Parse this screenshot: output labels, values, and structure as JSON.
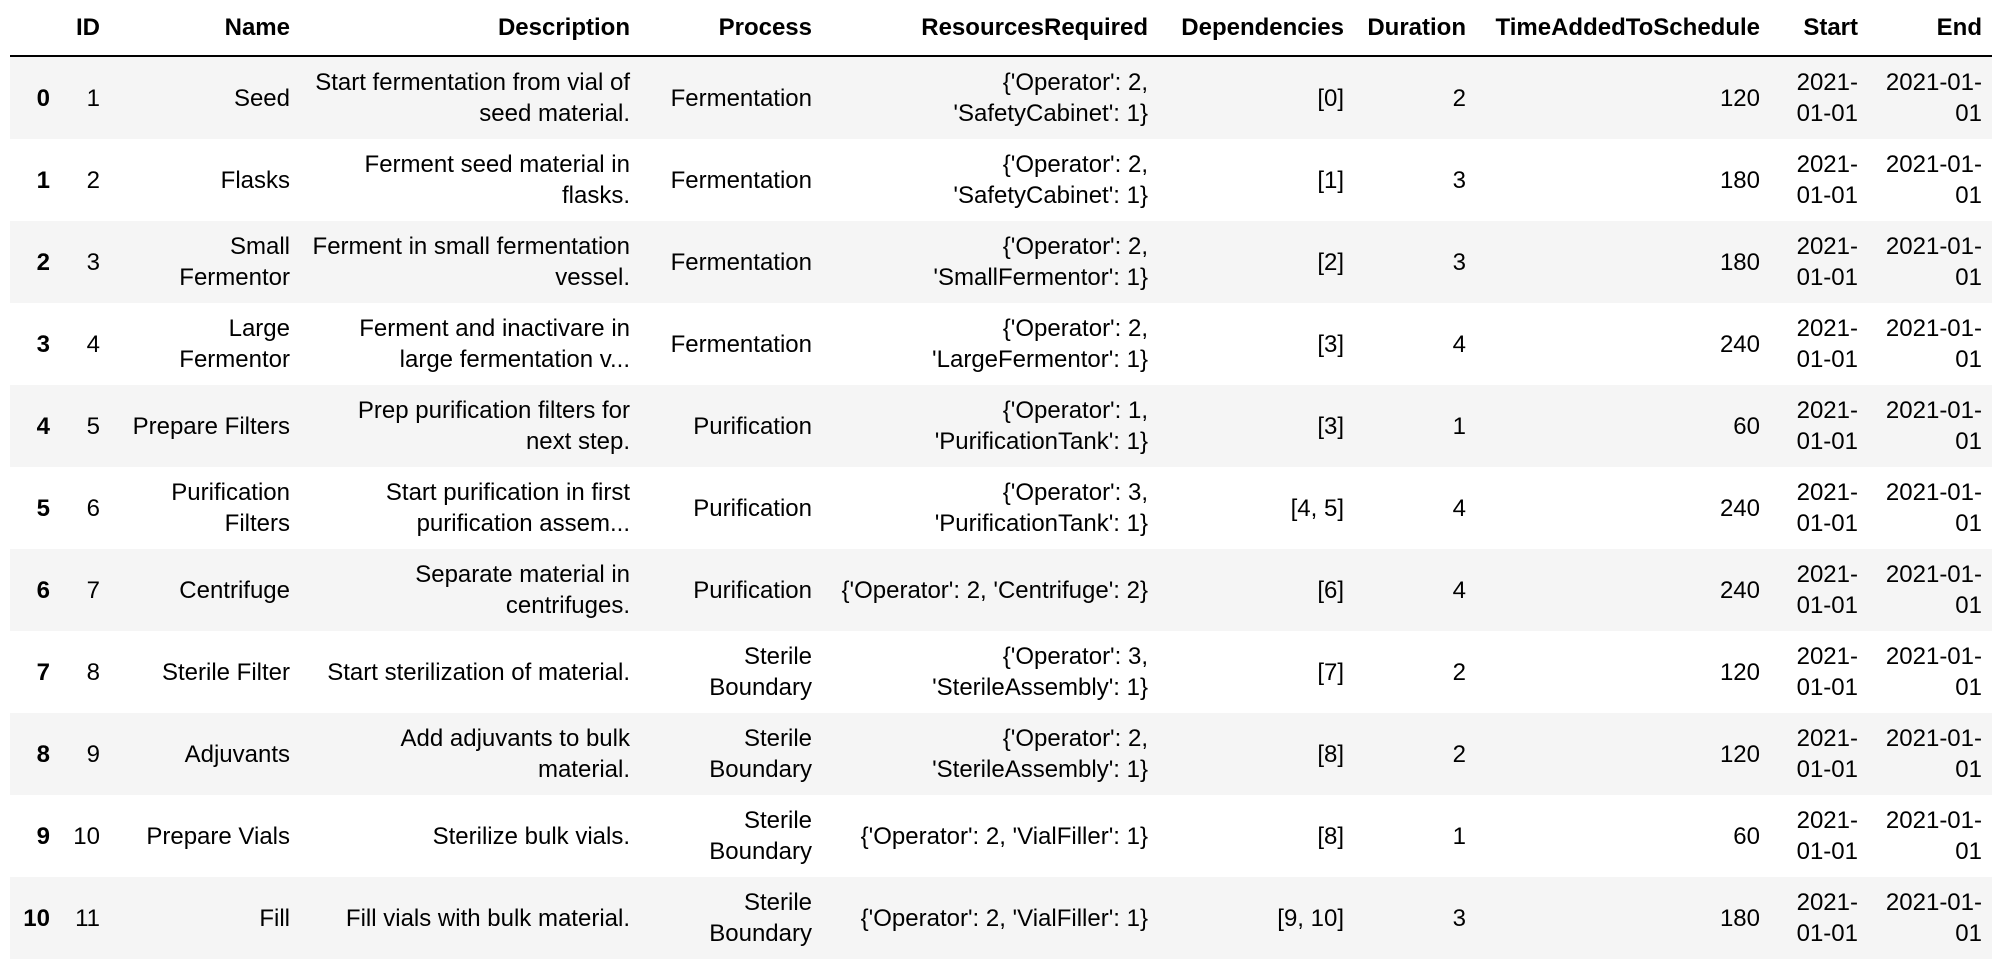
{
  "colors": {
    "row_stripe": "#f5f5f5",
    "text": "#000000",
    "header_border": "#000000"
  },
  "table": {
    "columns": [
      "",
      "ID",
      "Name",
      "Description",
      "Process",
      "ResourcesRequired",
      "Dependencies",
      "Duration",
      "TimeAddedToSchedule",
      "Start",
      "End"
    ],
    "column_keys": [
      "id",
      "name",
      "description",
      "process",
      "resources-required",
      "dependencies",
      "duration",
      "time-added-to-schedule",
      "start",
      "end"
    ],
    "rows": [
      {
        "index": "0",
        "cells": [
          "1",
          "Seed",
          "Start fermentation from vial of seed material.",
          "Fermentation",
          "{'Operator': 2, 'SafetyCabinet': 1}",
          "[0]",
          "2",
          "120",
          "2021-01-01",
          "2021-01-01"
        ]
      },
      {
        "index": "1",
        "cells": [
          "2",
          "Flasks",
          "Ferment seed material in flasks.",
          "Fermentation",
          "{'Operator': 2, 'SafetyCabinet': 1}",
          "[1]",
          "3",
          "180",
          "2021-01-01",
          "2021-01-01"
        ]
      },
      {
        "index": "2",
        "cells": [
          "3",
          "Small Fermentor",
          "Ferment in small fermentation vessel.",
          "Fermentation",
          "{'Operator': 2, 'SmallFermentor': 1}",
          "[2]",
          "3",
          "180",
          "2021-01-01",
          "2021-01-01"
        ]
      },
      {
        "index": "3",
        "cells": [
          "4",
          "Large Fermentor",
          "Ferment and inactivare in large fermentation v...",
          "Fermentation",
          "{'Operator': 2, 'LargeFermentor': 1}",
          "[3]",
          "4",
          "240",
          "2021-01-01",
          "2021-01-01"
        ]
      },
      {
        "index": "4",
        "cells": [
          "5",
          "Prepare Filters",
          "Prep purification filters for next step.",
          "Purification",
          "{'Operator': 1, 'PurificationTank': 1}",
          "[3]",
          "1",
          "60",
          "2021-01-01",
          "2021-01-01"
        ]
      },
      {
        "index": "5",
        "cells": [
          "6",
          "Purification Filters",
          "Start purification in first purification assem...",
          "Purification",
          "{'Operator': 3, 'PurificationTank': 1}",
          "[4, 5]",
          "4",
          "240",
          "2021-01-01",
          "2021-01-01"
        ]
      },
      {
        "index": "6",
        "cells": [
          "7",
          "Centrifuge",
          "Separate material in centrifuges.",
          "Purification",
          "{'Operator': 2, 'Centrifuge': 2}",
          "[6]",
          "4",
          "240",
          "2021-01-01",
          "2021-01-01"
        ]
      },
      {
        "index": "7",
        "cells": [
          "8",
          "Sterile Filter",
          "Start sterilization of material.",
          "Sterile Boundary",
          "{'Operator': 3, 'SterileAssembly': 1}",
          "[7]",
          "2",
          "120",
          "2021-01-01",
          "2021-01-01"
        ]
      },
      {
        "index": "8",
        "cells": [
          "9",
          "Adjuvants",
          "Add adjuvants to bulk material.",
          "Sterile Boundary",
          "{'Operator': 2, 'SterileAssembly': 1}",
          "[8]",
          "2",
          "120",
          "2021-01-01",
          "2021-01-01"
        ]
      },
      {
        "index": "9",
        "cells": [
          "10",
          "Prepare Vials",
          "Sterilize bulk vials.",
          "Sterile Boundary",
          "{'Operator': 2, 'VialFiller': 1}",
          "[8]",
          "1",
          "60",
          "2021-01-01",
          "2021-01-01"
        ]
      },
      {
        "index": "10",
        "cells": [
          "11",
          "Fill",
          "Fill vials with bulk material.",
          "Sterile Boundary",
          "{'Operator': 2, 'VialFiller': 1}",
          "[9, 10]",
          "3",
          "180",
          "2021-01-01",
          "2021-01-01"
        ]
      }
    ]
  }
}
